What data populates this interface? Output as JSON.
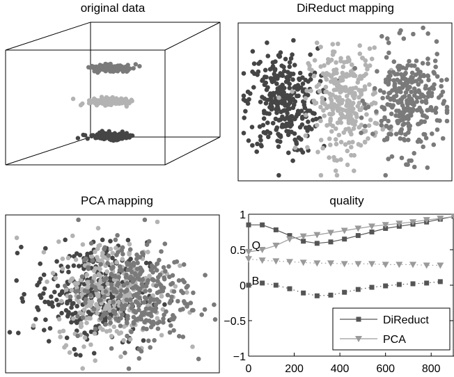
{
  "colors": {
    "cluster_dark": "#454545",
    "cluster_light": "#b3b3b3",
    "cluster_mid": "#7a7a7a",
    "direduct": "#555555",
    "pca": "#9a9a9a",
    "axes": "#000000"
  },
  "chart_data": [
    {
      "type": "scatter3d",
      "title": "original data",
      "clusters": [
        {
          "name": "",
          "color": "cluster_mid",
          "z": 1.0,
          "spread_x": 1.6,
          "spread_y": 0.35,
          "count": 140
        },
        {
          "name": "",
          "color": "cluster_light",
          "z": 0.0,
          "spread_x": 1.6,
          "spread_y": 0.35,
          "count": 140
        },
        {
          "name": "",
          "color": "cluster_dark",
          "z": -1.0,
          "spread_x": 1.6,
          "spread_y": 0.35,
          "count": 140
        }
      ]
    },
    {
      "type": "scatter",
      "title": "DiReduct mapping",
      "clusters": [
        {
          "name": "",
          "color": "cluster_dark",
          "cx": -1.0,
          "cy": 0.0,
          "sx": 0.28,
          "sy": 0.6,
          "count": 300
        },
        {
          "name": "",
          "color": "cluster_light",
          "cx": 0.0,
          "cy": 0.0,
          "sx": 0.28,
          "sy": 0.6,
          "count": 300
        },
        {
          "name": "",
          "color": "cluster_mid",
          "cx": 1.0,
          "cy": 0.0,
          "sx": 0.28,
          "sy": 0.6,
          "count": 300
        }
      ],
      "xlim": [
        -1.7,
        1.7
      ],
      "ylim": [
        -1.8,
        1.8
      ]
    },
    {
      "type": "scatter",
      "title": "PCA mapping",
      "clusters": [
        {
          "name": "",
          "color": "cluster_dark",
          "cx": -0.35,
          "cy": 0.0,
          "sx": 0.45,
          "sy": 0.55,
          "count": 300
        },
        {
          "name": "",
          "color": "cluster_light",
          "cx": 0.0,
          "cy": 0.05,
          "sx": 0.45,
          "sy": 0.55,
          "count": 300
        },
        {
          "name": "",
          "color": "cluster_mid",
          "cx": 0.35,
          "cy": 0.0,
          "sx": 0.45,
          "sy": 0.55,
          "count": 300
        }
      ],
      "xlim": [
        -1.7,
        1.7
      ],
      "ylim": [
        -1.7,
        1.7
      ]
    },
    {
      "type": "line",
      "title": "quality",
      "xlim": [
        0,
        900
      ],
      "ylim": [
        -1,
        1
      ],
      "xticks": [
        0,
        200,
        400,
        600,
        800
      ],
      "yticks": [
        -1,
        -0.5,
        0,
        0.5,
        1
      ],
      "ytick_labels": [
        "−1",
        "−0.5",
        "0",
        "0.5",
        "1"
      ],
      "annotations": [
        {
          "text": "Q",
          "x": 5,
          "y": 0.57
        },
        {
          "text": "B",
          "x": 5,
          "y": 0.07
        }
      ],
      "legend": {
        "position": "bottom-right",
        "entries": [
          "DiReduct",
          "PCA"
        ]
      },
      "series": [
        {
          "name": "DiReduct",
          "kind": "Q",
          "color": "direduct",
          "marker": "square",
          "style": "solid",
          "x": [
            0,
            60,
            120,
            180,
            240,
            300,
            360,
            420,
            480,
            540,
            600,
            660,
            720,
            780,
            840,
            900
          ],
          "y": [
            0.85,
            0.85,
            0.78,
            0.7,
            0.62,
            0.59,
            0.61,
            0.65,
            0.7,
            0.75,
            0.8,
            0.83,
            0.86,
            0.89,
            0.93,
            0.97
          ]
        },
        {
          "name": "PCA",
          "kind": "Q",
          "color": "pca",
          "marker": "triangle-down",
          "style": "solid",
          "x": [
            0,
            60,
            120,
            180,
            240,
            300,
            360,
            420,
            480,
            540,
            600,
            660,
            720,
            780,
            840,
            900
          ],
          "y": [
            0.47,
            0.5,
            0.56,
            0.65,
            0.69,
            0.71,
            0.74,
            0.77,
            0.8,
            0.83,
            0.85,
            0.87,
            0.89,
            0.92,
            0.94,
            0.97
          ]
        },
        {
          "name": "DiReduct",
          "kind": "B",
          "color": "direduct",
          "marker": "square",
          "style": "dotted",
          "x": [
            0,
            60,
            120,
            180,
            240,
            300,
            360,
            420,
            480,
            540,
            600,
            660,
            720,
            780,
            840
          ],
          "y": [
            0.0,
            0.03,
            0.0,
            -0.05,
            -0.11,
            -0.15,
            -0.14,
            -0.1,
            -0.06,
            -0.03,
            -0.01,
            0.01,
            0.02,
            0.03,
            0.05
          ]
        },
        {
          "name": "PCA",
          "kind": "B",
          "color": "pca",
          "marker": "triangle-down",
          "style": "dotted",
          "x": [
            0,
            60,
            120,
            180,
            240,
            300,
            360,
            420,
            480,
            540,
            600,
            660,
            720,
            780,
            840
          ],
          "y": [
            0.37,
            0.35,
            0.34,
            0.33,
            0.32,
            0.31,
            0.31,
            0.3,
            0.3,
            0.3,
            0.29,
            0.29,
            0.29,
            0.28,
            0.28
          ]
        }
      ]
    }
  ]
}
